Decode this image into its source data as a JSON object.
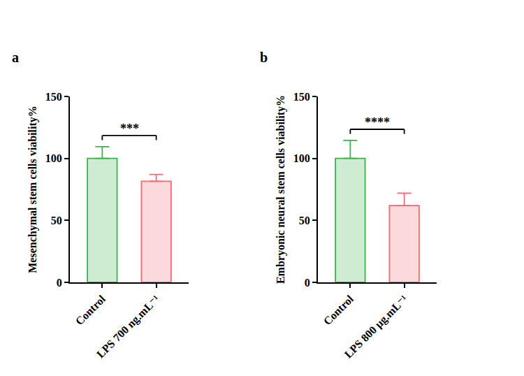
{
  "chart_data": [
    {
      "type": "bar",
      "panel": "a",
      "y_label": "Mesenchymal stem cells viability%",
      "categories": [
        "Control",
        "LPS 700 ng.mL⁻¹"
      ],
      "values": [
        100,
        81.5
      ],
      "errors": [
        9.5,
        5.5
      ],
      "colors": [
        "#3cb44b",
        "#f36b72"
      ],
      "significance": "***",
      "ylim": [
        0,
        150
      ],
      "yticks": [
        0,
        50,
        100,
        150
      ],
      "grid": false
    },
    {
      "type": "bar",
      "panel": "b",
      "y_label": "Embryonic neural stem cells viability%",
      "categories": [
        "Control",
        "LPS 800 µg.mL⁻¹"
      ],
      "values": [
        100,
        62
      ],
      "errors": [
        14.5,
        10
      ],
      "colors": [
        "#3cb44b",
        "#f36b72"
      ],
      "significance": "****",
      "ylim": [
        0,
        150
      ],
      "yticks": [
        0,
        50,
        100,
        150
      ],
      "grid": false
    }
  ]
}
